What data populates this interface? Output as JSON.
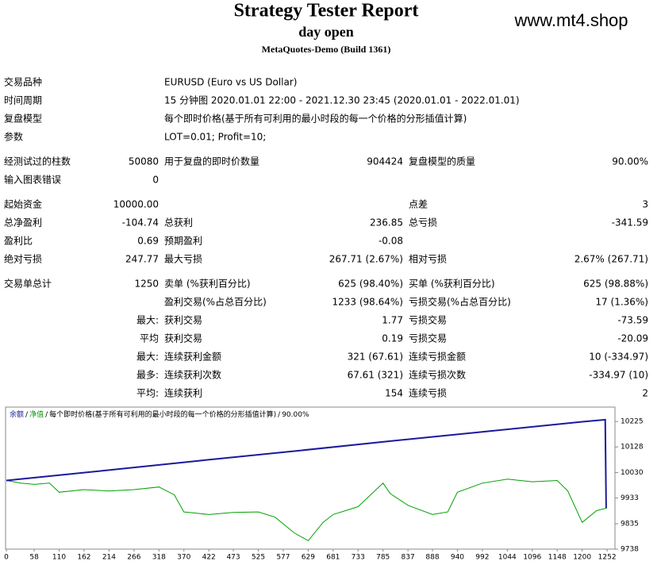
{
  "header": {
    "title": "Strategy Tester Report",
    "subtitle": "day open",
    "build": "MetaQuotes-Demo (Build 1361)",
    "watermark": "www.mt4.shop"
  },
  "table": {
    "sections": [
      [
        [
          "交易品种",
          "EURUSD (Euro vs US Dollar)"
        ],
        [
          "时间周期",
          "15 分钟图 2020.01.01 22:00 - 2021.12.30 23:45 (2020.01.01 - 2022.01.01)"
        ],
        [
          "复盘模型",
          "每个即时价格(基于所有可利用的最小时段的每一个价格的分形插值计算)"
        ],
        [
          "参数",
          "LOT=0.01; Profit=10;"
        ]
      ],
      [
        [
          "经测试过的柱数",
          "50080",
          "用于复盘的即时价数量",
          "904424",
          "复盘模型的质量",
          "90.00%"
        ],
        [
          "输入图表错误",
          "0"
        ]
      ],
      [
        [
          "起始资金",
          "10000.00",
          null,
          null,
          "点差",
          "3"
        ],
        [
          "总净盈利",
          "-104.74",
          "总获利",
          "236.85",
          "总亏损",
          "-341.59"
        ],
        [
          "盈利比",
          "0.69",
          "预期盈利",
          "-0.08"
        ],
        [
          "绝对亏损",
          "247.77",
          "最大亏损",
          "267.71 (2.67%)",
          "相对亏损",
          "2.67% (267.71)"
        ]
      ],
      [
        [
          "交易单总计",
          "1250",
          "卖单 (%获利百分比)",
          "625 (98.40%)",
          "买单 (%获利百分比)",
          "625 (98.88%)"
        ],
        [
          null,
          null,
          "盈利交易(%占总百分比)",
          "1233 (98.64%)",
          "亏损交易(%占总百分比)",
          "17 (1.36%)"
        ],
        [
          null,
          "最大:",
          "获利交易",
          "1.77",
          "亏损交易",
          "-73.59"
        ],
        [
          null,
          "平均",
          "获利交易",
          "0.19",
          "亏损交易",
          "-20.09"
        ],
        [
          null,
          "最大:",
          "连续获利金额",
          "321 (67.61)",
          "连续亏损金额",
          "10 (-334.97)"
        ],
        [
          null,
          "最多:",
          "连续获利次数",
          "67.61 (321)",
          "连续亏损次数",
          "-334.97 (10)"
        ],
        [
          null,
          "平均:",
          "连续获利",
          "154",
          "连续亏损",
          "2"
        ]
      ]
    ]
  },
  "chart_data": {
    "type": "line",
    "legend_separator": "/",
    "legend_note": "每个即时价格(基于所有可利用的最小时段的每一个价格的分形插值计算)",
    "legend_quality": "90.00%",
    "xlim": [
      0,
      1270
    ],
    "ylim": [
      9738,
      10280
    ],
    "xticks": [
      0,
      58,
      110,
      162,
      214,
      266,
      318,
      370,
      422,
      473,
      525,
      577,
      629,
      681,
      733,
      785,
      837,
      888,
      940,
      992,
      1044,
      1096,
      1148,
      1200,
      1252
    ],
    "yticks": [
      10225,
      10128,
      10030,
      9933,
      9835,
      9738
    ],
    "series": [
      {
        "name": "余额",
        "color": "#1a1a9c",
        "x": [
          0,
          200,
          400,
          600,
          800,
          1000,
          1200,
          1248,
          1250
        ],
        "values": [
          10000,
          10037,
          10075,
          10112,
          10150,
          10187,
          10224,
          10232,
          9895
        ]
      },
      {
        "name": "净值",
        "color": "#00a000",
        "x": [
          0,
          30,
          58,
          90,
          110,
          162,
          214,
          266,
          318,
          350,
          370,
          422,
          473,
          525,
          560,
          600,
          629,
          660,
          681,
          733,
          785,
          800,
          837,
          888,
          920,
          940,
          992,
          1044,
          1096,
          1148,
          1170,
          1190,
          1200,
          1230,
          1252
        ],
        "values": [
          10000,
          9990,
          9985,
          9990,
          9955,
          9965,
          9960,
          9965,
          9975,
          9945,
          9880,
          9870,
          9878,
          9880,
          9860,
          9800,
          9770,
          9840,
          9870,
          9900,
          9990,
          9950,
          9905,
          9870,
          9880,
          9955,
          9990,
          10005,
          9995,
          10000,
          9960,
          9880,
          9840,
          9885,
          9895
        ]
      }
    ]
  }
}
